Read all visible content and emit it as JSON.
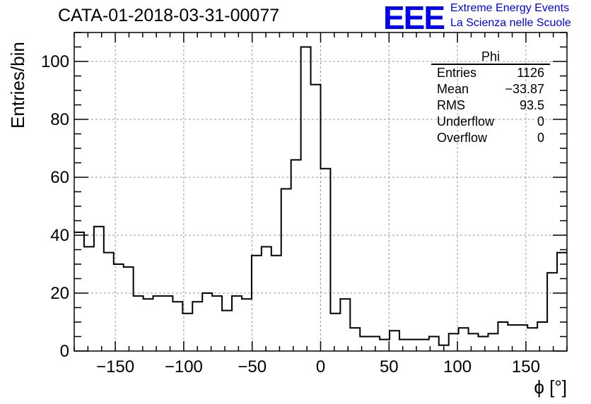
{
  "title": "CATA-01-2018-03-31-00077",
  "logo": {
    "text": "EEE",
    "line1": "Extreme Energy Events",
    "line2": "La Scienza nelle Scuole",
    "color": "#0000ee"
  },
  "chart_data": {
    "type": "bar",
    "style": "step-histogram",
    "xlabel": "ϕ [°]",
    "ylabel": "Entries/bin",
    "xlim": [
      -180,
      180
    ],
    "ylim": [
      0,
      110
    ],
    "grid": true,
    "bin_width": 7.2,
    "bin_edges_start": -180,
    "x_ticks": [
      -150,
      -100,
      -50,
      0,
      50,
      100,
      150
    ],
    "x_tick_labels": [
      "−150",
      "−100",
      "−50",
      "0",
      "50",
      "100",
      "150"
    ],
    "y_ticks": [
      0,
      20,
      40,
      60,
      80,
      100
    ],
    "y_tick_labels": [
      "0",
      "20",
      "40",
      "60",
      "80",
      "100"
    ],
    "values": [
      41,
      36,
      43,
      34,
      30,
      29,
      19,
      18,
      19,
      19,
      17,
      13,
      17,
      20,
      19,
      14,
      19,
      18,
      33,
      36,
      33,
      56,
      66,
      105,
      92,
      63,
      13,
      18,
      8,
      5,
      5,
      4,
      7,
      4,
      4,
      4,
      5,
      2,
      6,
      8,
      6,
      5,
      6,
      10,
      9,
      9,
      8,
      10,
      27,
      34
    ],
    "line_color": "#000000"
  },
  "stats": {
    "title": "Phi",
    "rows": [
      {
        "label": "Entries",
        "value": "1126"
      },
      {
        "label": "Mean",
        "value": "−33.87"
      },
      {
        "label": "RMS",
        "value": "93.5"
      },
      {
        "label": "Underflow",
        "value": "0"
      },
      {
        "label": "Overflow",
        "value": "0"
      }
    ]
  }
}
